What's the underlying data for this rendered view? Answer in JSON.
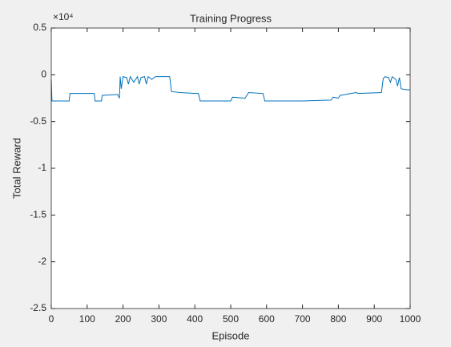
{
  "chart_data": {
    "type": "line",
    "title": "Training Progress",
    "xlabel": "Episode",
    "ylabel": "Total Reward",
    "y_multiplier": "×10⁴",
    "x": [
      0,
      2,
      5,
      50,
      52,
      120,
      122,
      140,
      142,
      185,
      190,
      192,
      195,
      200,
      210,
      215,
      220,
      230,
      240,
      245,
      250,
      260,
      265,
      270,
      280,
      290,
      300,
      330,
      335,
      360,
      400,
      410,
      415,
      500,
      505,
      540,
      550,
      590,
      595,
      700,
      780,
      785,
      800,
      805,
      850,
      855,
      920,
      925,
      930,
      940,
      945,
      950,
      960,
      965,
      970,
      975,
      990,
      1000
    ],
    "series": [
      {
        "color": "#0072bd",
        "values": [
          -0.05,
          -0.28,
          -0.28,
          -0.28,
          -0.2,
          -0.2,
          -0.28,
          -0.28,
          -0.22,
          -0.21,
          -0.25,
          -0.02,
          -0.15,
          -0.02,
          -0.03,
          -0.1,
          -0.02,
          -0.08,
          -0.02,
          -0.1,
          -0.03,
          -0.02,
          -0.1,
          -0.02,
          -0.05,
          -0.02,
          -0.02,
          -0.02,
          -0.18,
          -0.19,
          -0.2,
          -0.2,
          -0.28,
          -0.28,
          -0.24,
          -0.25,
          -0.19,
          -0.2,
          -0.28,
          -0.28,
          -0.27,
          -0.24,
          -0.25,
          -0.22,
          -0.19,
          -0.2,
          -0.19,
          -0.04,
          -0.02,
          -0.03,
          -0.08,
          -0.02,
          -0.05,
          -0.12,
          -0.03,
          -0.15,
          -0.16,
          -0.16
        ]
      }
    ],
    "xlim": [
      0,
      1000
    ],
    "xticks": [
      0,
      100,
      200,
      300,
      400,
      500,
      600,
      700,
      800,
      900,
      1000
    ],
    "ylim": [
      -2.5,
      0.5
    ],
    "yticks": [
      0.5,
      0,
      -0.5,
      -1,
      -1.5,
      -2,
      -2.5
    ]
  }
}
